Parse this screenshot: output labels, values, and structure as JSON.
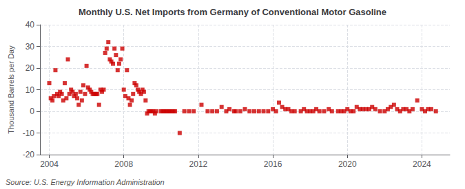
{
  "chart_data": {
    "type": "scatter",
    "title": "Monthly U.S. Net Imports from Germany of Conventional Motor Gasoline",
    "ylabel": "Thousand Barrels per Day",
    "source": "Source: U.S. Energy Information Administration",
    "color": "#cc0000",
    "marker": "square",
    "grid": true,
    "xlim": [
      2003.5,
      2025.5
    ],
    "xticks": [
      2004,
      2008,
      2012,
      2016,
      2020,
      2024
    ],
    "ylim": [
      -20,
      40
    ],
    "yticks": [
      -20,
      -10,
      0,
      10,
      20,
      30,
      40
    ],
    "x": [
      2004.0,
      2004.08,
      2004.17,
      2004.25,
      2004.33,
      2004.42,
      2004.5,
      2004.58,
      2004.67,
      2004.75,
      2004.83,
      2004.92,
      2005.0,
      2005.08,
      2005.17,
      2005.25,
      2005.33,
      2005.42,
      2005.5,
      2005.58,
      2005.67,
      2005.75,
      2005.83,
      2005.92,
      2006.0,
      2006.08,
      2006.17,
      2006.25,
      2006.33,
      2006.42,
      2006.5,
      2006.58,
      2006.67,
      2006.75,
      2006.83,
      2006.92,
      2007.0,
      2007.08,
      2007.17,
      2007.25,
      2007.33,
      2007.42,
      2007.5,
      2007.58,
      2007.67,
      2007.75,
      2007.83,
      2007.92,
      2008.0,
      2008.08,
      2008.17,
      2008.25,
      2008.33,
      2008.42,
      2008.5,
      2008.58,
      2008.67,
      2008.75,
      2008.83,
      2008.92,
      2009.0,
      2009.08,
      2009.17,
      2009.25,
      2009.33,
      2009.42,
      2009.5,
      2009.58,
      2009.67,
      2009.75,
      2010.0,
      2010.08,
      2010.17,
      2010.25,
      2010.33,
      2010.42,
      2010.5,
      2010.58,
      2010.67,
      2010.75,
      2011.0,
      2011.25,
      2011.5,
      2011.75,
      2012.17,
      2012.5,
      2012.75,
      2013.0,
      2013.25,
      2013.5,
      2013.67,
      2013.92,
      2014.0,
      2014.25,
      2014.5,
      2014.75,
      2015.0,
      2015.25,
      2015.5,
      2015.75,
      2016.0,
      2016.17,
      2016.33,
      2016.5,
      2016.67,
      2016.83,
      2017.0,
      2017.17,
      2017.5,
      2017.67,
      2017.83,
      2018.0,
      2018.17,
      2018.33,
      2018.5,
      2018.75,
      2019.0,
      2019.17,
      2019.5,
      2019.67,
      2019.83,
      2020.0,
      2020.17,
      2020.33,
      2020.5,
      2020.67,
      2020.83,
      2021.0,
      2021.17,
      2021.33,
      2021.5,
      2021.75,
      2022.0,
      2022.17,
      2022.33,
      2022.5,
      2022.67,
      2022.83,
      2023.0,
      2023.17,
      2023.33,
      2023.5,
      2023.75,
      2024.0,
      2024.17,
      2024.33,
      2024.5,
      2024.75
    ],
    "values": [
      13,
      6,
      5,
      7,
      19,
      8,
      7,
      9,
      8,
      5,
      13,
      6,
      24,
      8,
      10,
      9,
      7,
      8,
      6,
      3,
      9,
      5,
      12,
      8,
      21,
      11,
      10,
      9,
      8,
      8,
      8,
      8,
      3,
      10,
      9,
      10,
      27,
      29,
      32,
      24,
      23,
      22,
      29,
      26,
      19,
      22,
      24,
      29,
      10,
      7,
      19,
      6,
      3,
      5,
      8,
      13,
      12,
      10,
      9,
      8,
      10,
      9,
      5,
      -1,
      0,
      0,
      0,
      0,
      -1,
      0,
      0,
      0,
      0,
      0,
      0,
      0,
      0,
      0,
      0,
      0,
      -10,
      0,
      0,
      0,
      3,
      0,
      0,
      0,
      2,
      0,
      1,
      0,
      0,
      0,
      1,
      0,
      0,
      0,
      0,
      0,
      1,
      0,
      4,
      2,
      1,
      1,
      0,
      0,
      0,
      1,
      0,
      0,
      0,
      1,
      0,
      0,
      1,
      0,
      0,
      0,
      0,
      1,
      0,
      0,
      2,
      1,
      1,
      1,
      1,
      2,
      1,
      0,
      0,
      1,
      2,
      3,
      1,
      0,
      1,
      1,
      0,
      1,
      5,
      1,
      0,
      1,
      1,
      0
    ]
  }
}
